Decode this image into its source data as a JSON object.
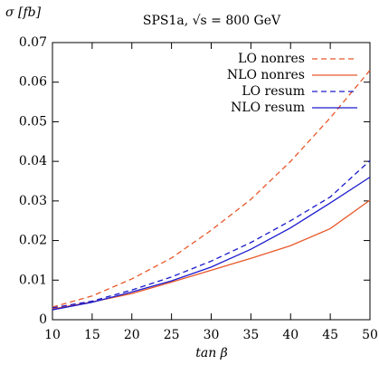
{
  "chart_data": {
    "type": "line",
    "title": "SPS1a, √s = 800 GeV",
    "y_label": "σ [fb]",
    "x_label": "tan β",
    "x": [
      10,
      15,
      20,
      25,
      30,
      35,
      40,
      45,
      50
    ],
    "series": [
      {
        "name": "LO nonres",
        "color": "#e8582a",
        "dashed": true,
        "values": [
          0.0032,
          0.006,
          0.0103,
          0.0156,
          0.0226,
          0.0304,
          0.04,
          0.051,
          0.063
        ]
      },
      {
        "name": "NLO nonres",
        "color": "#e8582a",
        "dashed": false,
        "values": [
          0.0027,
          0.0045,
          0.0066,
          0.0095,
          0.0125,
          0.0155,
          0.0187,
          0.023,
          0.0302
        ]
      },
      {
        "name": "LO resum",
        "color": "#1a1acc",
        "dashed": true,
        "values": [
          0.003,
          0.0047,
          0.0075,
          0.0108,
          0.0148,
          0.0195,
          0.025,
          0.031,
          0.0402
        ]
      },
      {
        "name": "NLO resum",
        "color": "#1a1acc",
        "dashed": false,
        "values": [
          0.0025,
          0.0044,
          0.007,
          0.0098,
          0.0133,
          0.0178,
          0.0232,
          0.0295,
          0.036
        ]
      }
    ],
    "xlim": [
      10,
      50
    ],
    "xticks": [
      10,
      15,
      20,
      25,
      30,
      35,
      40,
      45,
      50
    ],
    "ylim": [
      0,
      0.07
    ],
    "yticks": [
      0,
      0.01,
      0.02,
      0.03,
      0.04,
      0.05,
      0.06,
      0.07
    ],
    "legend": "top-right"
  }
}
